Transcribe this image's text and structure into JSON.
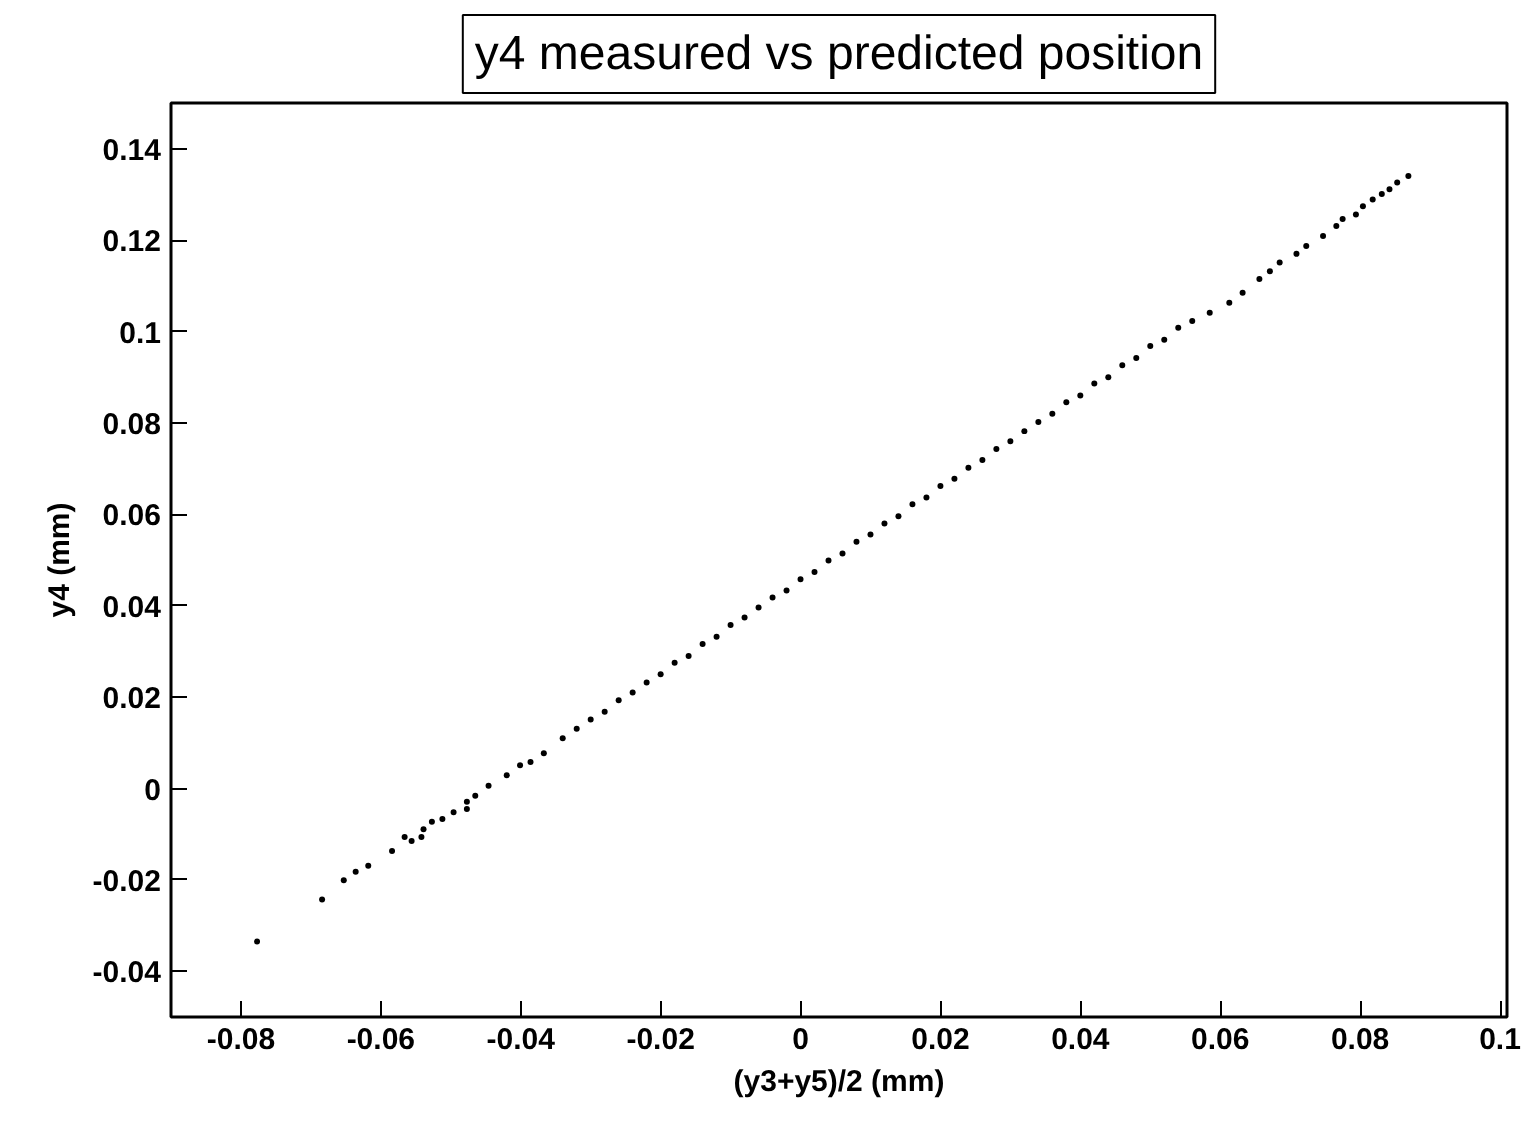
{
  "chart_data": {
    "type": "scatter",
    "title": "y4 measured vs predicted position",
    "xlabel": "(y3+y5)/2 (mm)",
    "ylabel": "y4 (mm)",
    "xlim": [
      -0.09,
      0.101
    ],
    "ylim": [
      -0.05,
      0.15
    ],
    "xticks": [
      -0.08,
      -0.06,
      -0.04,
      -0.02,
      0,
      0.02,
      0.04,
      0.06,
      0.08,
      0.1
    ],
    "yticks": [
      -0.04,
      -0.02,
      0,
      0.02,
      0.04,
      0.06,
      0.08,
      0.1,
      0.12,
      0.14
    ],
    "marker": "circle",
    "series": [
      {
        "color": "#000000",
        "x": [
          -0.0777,
          -0.0684,
          -0.0653,
          -0.0636,
          -0.0618,
          -0.0584,
          -0.0566,
          -0.0556,
          -0.0542,
          -0.0539,
          -0.0527,
          -0.0512,
          -0.0496,
          -0.0477,
          -0.0477,
          -0.0465,
          -0.0446,
          -0.042,
          -0.0401,
          -0.0386,
          -0.0367,
          -0.034,
          -0.032,
          -0.03,
          -0.028,
          -0.026,
          -0.024,
          -0.022,
          -0.02,
          -0.018,
          -0.016,
          -0.014,
          -0.012,
          -0.01,
          -0.008,
          -0.006,
          -0.004,
          -0.002,
          0,
          0.002,
          0.004,
          0.006,
          0.008,
          0.01,
          0.012,
          0.014,
          0.016,
          0.018,
          0.02,
          0.022,
          0.024,
          0.026,
          0.028,
          0.03,
          0.032,
          0.034,
          0.036,
          0.038,
          0.04,
          0.042,
          0.044,
          0.046,
          0.048,
          0.05,
          0.052,
          0.054,
          0.056,
          0.0585,
          0.0613,
          0.0632,
          0.0656,
          0.0671,
          0.0685,
          0.0709,
          0.0723,
          0.0747,
          0.0766,
          0.0775,
          0.0794,
          0.0804,
          0.0818,
          0.0831,
          0.0842,
          0.0853,
          0.0869
        ],
        "values": [
          -0.0335,
          -0.0243,
          -0.0201,
          -0.0182,
          -0.0169,
          -0.0137,
          -0.0106,
          -0.0115,
          -0.0106,
          -0.0089,
          -0.0073,
          -0.0067,
          -0.0052,
          -0.0045,
          -0.0029,
          -0.0016,
          0.0006,
          0.0029,
          0.0051,
          0.0058,
          0.0077,
          0.011,
          0.0131,
          0.0151,
          0.0168,
          0.0193,
          0.021,
          0.0232,
          0.025,
          0.0275,
          0.029,
          0.0316,
          0.0332,
          0.0358,
          0.0374,
          0.0396,
          0.0418,
          0.0433,
          0.0458,
          0.0474,
          0.0499,
          0.0514,
          0.054,
          0.0556,
          0.058,
          0.0596,
          0.0622,
          0.0637,
          0.0662,
          0.0678,
          0.0702,
          0.0719,
          0.0743,
          0.076,
          0.0782,
          0.0802,
          0.082,
          0.0845,
          0.086,
          0.0886,
          0.09,
          0.0926,
          0.0942,
          0.0968,
          0.0982,
          0.1008,
          0.1023,
          0.1041,
          0.1063,
          0.1085,
          0.1115,
          0.1132,
          0.1151,
          0.117,
          0.1187,
          0.1209,
          0.1231,
          0.1246,
          0.1256,
          0.1274,
          0.1289,
          0.1301,
          0.1311,
          0.1326,
          0.134
        ]
      }
    ]
  }
}
